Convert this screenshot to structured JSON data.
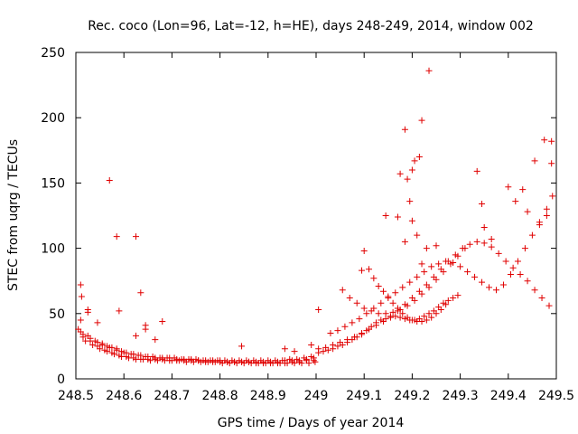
{
  "chart_data": {
    "type": "scatter",
    "title": "Rec. coco (Lon=96, Lat=-12, h=HE), days 248-249, 2014, window 002",
    "xlabel": "GPS time / Days of year 2014",
    "ylabel": "STEC from uqrg / TECUs",
    "xlim": [
      248.5,
      249.5
    ],
    "ylim": [
      0,
      250
    ],
    "xticks": [
      248.5,
      248.6,
      248.7,
      248.8,
      248.9,
      249.0,
      249.1,
      249.2,
      249.3,
      249.4,
      249.5
    ],
    "xtick_labels": [
      "248.5",
      "248.6",
      "248.7",
      "248.8",
      "248.9",
      "249",
      "249.1",
      "249.2",
      "249.3",
      "249.4",
      "249.5"
    ],
    "yticks": [
      0,
      50,
      100,
      150,
      200,
      250
    ],
    "ytick_labels": [
      "0",
      "50",
      "100",
      "150",
      "200",
      "250"
    ],
    "marker": "+",
    "color": "#e00000",
    "grid": false,
    "legend": "none",
    "series": [
      {
        "name": "STEC",
        "x": [
          248.505,
          248.515,
          248.53,
          248.545,
          248.555,
          248.565,
          248.575,
          248.585,
          248.595,
          248.605,
          248.62,
          248.635,
          248.65,
          248.665,
          248.68,
          248.695,
          248.71,
          248.725,
          248.74,
          248.755,
          248.77,
          248.785,
          248.8,
          248.815,
          248.83,
          248.845,
          248.86,
          248.875,
          248.89,
          248.905,
          248.92,
          248.935,
          248.95,
          248.965,
          248.98,
          248.995,
          248.51,
          248.525,
          248.54,
          248.555,
          248.57,
          248.585,
          248.6,
          248.615,
          248.63,
          248.645,
          248.66,
          248.675,
          248.69,
          248.705,
          248.72,
          248.735,
          248.75,
          248.765,
          248.78,
          248.795,
          248.81,
          248.825,
          248.84,
          248.855,
          248.87,
          248.885,
          248.9,
          248.915,
          248.93,
          248.945,
          248.96,
          248.975,
          248.99,
          248.515,
          248.53,
          248.545,
          248.56,
          248.575,
          248.59,
          248.605,
          248.62,
          248.635,
          248.65,
          248.665,
          248.68,
          248.695,
          248.71,
          248.725,
          248.74,
          248.755,
          248.77,
          248.785,
          248.8,
          248.815,
          248.83,
          248.845,
          248.86,
          248.875,
          248.89,
          248.905,
          248.92,
          248.935,
          248.95,
          248.965,
          248.98,
          248.995,
          248.52,
          248.535,
          248.55,
          248.565,
          248.58,
          248.595,
          248.61,
          248.625,
          248.64,
          248.655,
          248.67,
          248.685,
          248.7,
          248.715,
          248.73,
          248.745,
          248.76,
          248.775,
          248.79,
          248.805,
          248.82,
          248.835,
          248.85,
          248.865,
          248.88,
          248.895,
          248.91,
          248.925,
          248.94,
          248.955,
          248.97,
          248.985,
          248.998,
          248.51,
          248.512,
          248.525,
          248.57,
          248.585,
          248.59,
          248.625,
          248.635,
          248.645,
          248.68,
          248.845,
          248.935,
          248.955,
          248.99,
          248.51,
          248.525,
          248.545,
          248.625,
          248.645,
          248.665,
          249.005,
          249.015,
          249.025,
          249.035,
          249.045,
          249.055,
          249.065,
          249.075,
          249.085,
          249.095,
          249.105,
          249.115,
          249.125,
          249.135,
          249.145,
          249.155,
          249.165,
          249.175,
          249.185,
          249.195,
          249.205,
          249.215,
          249.225,
          249.235,
          249.245,
          249.255,
          249.265,
          249.275,
          249.285,
          249.295,
          249.005,
          249.02,
          249.035,
          249.05,
          249.065,
          249.08,
          249.095,
          249.11,
          249.125,
          249.14,
          249.155,
          249.17,
          249.185,
          249.2,
          249.215,
          249.23,
          249.245,
          249.26,
          249.275,
          249.29,
          249.305,
          249.32,
          249.335,
          249.35,
          249.365,
          249.38,
          249.395,
          249.41,
          249.425,
          249.44,
          249.455,
          249.47,
          249.485,
          249.03,
          249.045,
          249.06,
          249.075,
          249.09,
          249.105,
          249.12,
          249.135,
          249.15,
          249.165,
          249.18,
          249.195,
          249.21,
          249.225,
          249.24,
          249.255,
          249.27,
          249.285,
          249.3,
          249.315,
          249.33,
          249.345,
          249.36,
          249.375,
          249.39,
          249.405,
          249.42,
          249.435,
          249.45,
          249.465,
          249.48,
          249.492,
          249.055,
          249.07,
          249.085,
          249.1,
          249.115,
          249.13,
          249.145,
          249.16,
          249.175,
          249.19,
          249.205,
          249.22,
          249.235,
          249.25,
          249.265,
          249.28,
          249.295,
          249.1,
          249.11,
          249.12,
          249.13,
          249.14,
          249.15,
          249.16,
          249.17,
          249.18,
          249.19,
          249.2,
          249.21,
          249.22,
          249.23,
          249.24,
          249.25,
          249.26,
          249.27,
          249.185,
          249.22,
          249.235,
          249.205,
          249.215,
          249.175,
          249.19,
          249.195,
          249.2,
          249.21,
          249.145,
          249.17,
          249.2,
          249.23,
          249.25,
          249.185,
          249.22,
          249.095,
          249.005,
          249.335,
          249.345,
          249.4,
          249.415,
          249.475,
          249.49,
          249.49,
          249.465,
          249.48,
          249.44,
          249.35,
          249.365,
          249.43,
          249.455,
          249.31
        ],
        "y": [
          38,
          34,
          31,
          28,
          27,
          25,
          24,
          23,
          21,
          20,
          19,
          18,
          17,
          16,
          16,
          16,
          15,
          15,
          15,
          14,
          14,
          14,
          14,
          13,
          13,
          13,
          13,
          13,
          13,
          13,
          13,
          14,
          14,
          14,
          15,
          16,
          36,
          33,
          29,
          26,
          24,
          22,
          20,
          19,
          18,
          17,
          17,
          16,
          16,
          16,
          15,
          15,
          15,
          14,
          14,
          14,
          14,
          14,
          14,
          14,
          14,
          14,
          14,
          14,
          14,
          15,
          15,
          16,
          17,
          32,
          29,
          25,
          22,
          20,
          18,
          17,
          16,
          15,
          15,
          15,
          15,
          14,
          14,
          14,
          14,
          14,
          13,
          13,
          13,
          13,
          13,
          13,
          13,
          12,
          12,
          12,
          12,
          12,
          13,
          13,
          14,
          14,
          29,
          26,
          23,
          21,
          19,
          17,
          16,
          15,
          15,
          14,
          14,
          14,
          14,
          14,
          13,
          13,
          13,
          13,
          13,
          12,
          12,
          12,
          12,
          12,
          12,
          12,
          12,
          12,
          12,
          12,
          12,
          12,
          13,
          72,
          63,
          51,
          152,
          109,
          52,
          109,
          66,
          41,
          44,
          25,
          23,
          21,
          26,
          45,
          53,
          43,
          33,
          38,
          30,
          20,
          21,
          22,
          23,
          25,
          26,
          28,
          30,
          32,
          34,
          37,
          40,
          43,
          45,
          46,
          47,
          48,
          47,
          46,
          45,
          45,
          46,
          48,
          50,
          52,
          55,
          58,
          60,
          62,
          64,
          23,
          24,
          26,
          28,
          30,
          32,
          35,
          38,
          41,
          44,
          48,
          52,
          57,
          62,
          67,
          72,
          78,
          84,
          90,
          95,
          100,
          103,
          105,
          104,
          101,
          96,
          90,
          85,
          80,
          75,
          68,
          62,
          56,
          35,
          37,
          40,
          43,
          46,
          50,
          54,
          58,
          62,
          66,
          70,
          74,
          78,
          82,
          86,
          88,
          90,
          89,
          86,
          82,
          78,
          74,
          70,
          68,
          72,
          80,
          90,
          100,
          110,
          120,
          130,
          140,
          68,
          62,
          58,
          54,
          52,
          50,
          50,
          51,
          53,
          56,
          60,
          65,
          70,
          76,
          82,
          88,
          94,
          98,
          84,
          77,
          71,
          67,
          63,
          58,
          54,
          50,
          47,
          45,
          44,
          44,
          45,
          47,
          50,
          53,
          57,
          191,
          198,
          236,
          167,
          170,
          157,
          153,
          136,
          121,
          110,
          125,
          124,
          160,
          100,
          102,
          105,
          88,
          83,
          53,
          159,
          134,
          147,
          136,
          183,
          182,
          165,
          118,
          125,
          128,
          116,
          107,
          145,
          167,
          100
        ]
      }
    ]
  }
}
